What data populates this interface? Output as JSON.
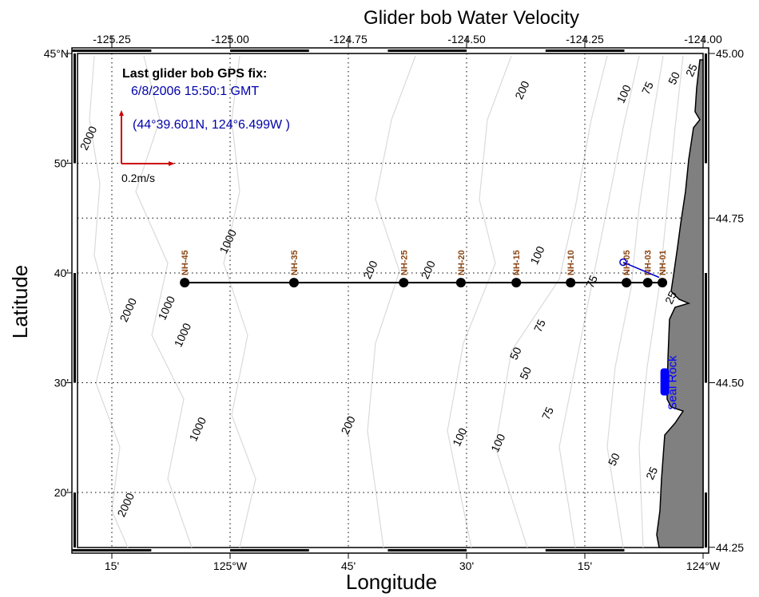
{
  "title": "Glider bob Water Velocity",
  "xlabel": "Longitude",
  "ylabel": "Latitude",
  "top_ticks": [
    {
      "lon": -125.25,
      "label": "-125.25"
    },
    {
      "lon": -125.0,
      "label": "-125.00"
    },
    {
      "lon": -124.75,
      "label": "-124.75"
    },
    {
      "lon": -124.5,
      "label": "-124.50"
    },
    {
      "lon": -124.25,
      "label": "-124.25"
    },
    {
      "lon": -124.0,
      "label": "-124.00"
    }
  ],
  "bottom_ticks": [
    {
      "lon": -125.25,
      "label": "15'"
    },
    {
      "lon": -125.0,
      "label": "125°W"
    },
    {
      "lon": -124.75,
      "label": "45'"
    },
    {
      "lon": -124.5,
      "label": "30'"
    },
    {
      "lon": -124.25,
      "label": "15'"
    },
    {
      "lon": -124.0,
      "label": "124°W"
    }
  ],
  "left_ticks": [
    {
      "lat": 45.0,
      "label": "45°N"
    },
    {
      "lat": 44.8333,
      "label": "50'"
    },
    {
      "lat": 44.6667,
      "label": "40'"
    },
    {
      "lat": 44.5,
      "label": "30'"
    },
    {
      "lat": 44.3333,
      "label": "20'"
    }
  ],
  "right_ticks": [
    {
      "lat": 45.0,
      "label": "45.00"
    },
    {
      "lat": 44.75,
      "label": "44.75"
    },
    {
      "lat": 44.5,
      "label": "44.50"
    },
    {
      "lat": 44.25,
      "label": "44.25"
    }
  ],
  "extent": {
    "lon": [
      -125.32,
      -124.0
    ],
    "lat": [
      44.25,
      45.0
    ]
  },
  "info": {
    "heading": "Last glider bob GPS fix:",
    "time": "6/8/2006 15:50:1 GMT",
    "position": "(44°39.601N, 124°6.499W )"
  },
  "scale": {
    "label": "0.2m/s",
    "color": "#cc0000"
  },
  "stations": [
    {
      "name": "NH-45",
      "lon": -125.096,
      "lat": 44.652
    },
    {
      "name": "NH-35",
      "lon": -124.865,
      "lat": 44.652
    },
    {
      "name": "NH-25",
      "lon": -124.633,
      "lat": 44.652
    },
    {
      "name": "NH-20",
      "lon": -124.512,
      "lat": 44.652
    },
    {
      "name": "NH-15",
      "lon": -124.395,
      "lat": 44.652
    },
    {
      "name": "NH-10",
      "lon": -124.28,
      "lat": 44.652
    },
    {
      "name": "NH-05",
      "lon": -124.162,
      "lat": 44.652
    },
    {
      "name": "NH-03",
      "lon": -124.117,
      "lat": 44.652
    },
    {
      "name": "NH-01",
      "lon": -124.086,
      "lat": 44.652
    }
  ],
  "glider_track": {
    "color": "#0000cc",
    "start": {
      "lon": -124.169,
      "lat": 44.683
    },
    "end": {
      "lon": -124.093,
      "lat": 44.66
    }
  },
  "seal_rock": {
    "label": "Seal Rock",
    "lon": -124.08,
    "lat": 44.5,
    "color": "#0000ff"
  },
  "contour_labels": [
    {
      "text": "25",
      "lon": -124.017,
      "lat": 44.972
    },
    {
      "text": "50",
      "lon": -124.054,
      "lat": 44.96
    },
    {
      "text": "75",
      "lon": -124.11,
      "lat": 44.945
    },
    {
      "text": "100",
      "lon": -124.16,
      "lat": 44.936
    },
    {
      "text": "200",
      "lon": -124.375,
      "lat": 44.942
    },
    {
      "text": "2000",
      "lon": -125.292,
      "lat": 44.869
    },
    {
      "text": "1000",
      "lon": -124.997,
      "lat": 44.712
    },
    {
      "text": "200",
      "lon": -124.696,
      "lat": 44.669
    },
    {
      "text": "200",
      "lon": -124.574,
      "lat": 44.669
    },
    {
      "text": "100",
      "lon": -124.38,
      "lat": 44.691
    },
    {
      "text": "75",
      "lon": -124.228,
      "lat": 44.651
    },
    {
      "text": "25",
      "lon": -124.081,
      "lat": 44.663
    },
    {
      "text": "2000",
      "lon": -125.208,
      "lat": 44.608
    },
    {
      "text": "1000",
      "lon": -125.127,
      "lat": 44.611
    },
    {
      "text": "1000",
      "lon": -125.093,
      "lat": 44.57
    },
    {
      "text": "75",
      "lon": -124.338,
      "lat": 44.584
    },
    {
      "text": "50",
      "lon": -124.389,
      "lat": 44.542
    },
    {
      "text": "50",
      "lon": -124.368,
      "lat": 44.512
    },
    {
      "text": "1000",
      "lon": -125.061,
      "lat": 44.427
    },
    {
      "text": "200",
      "lon": -124.743,
      "lat": 44.433
    },
    {
      "text": "75",
      "lon": -124.321,
      "lat": 44.451
    },
    {
      "text": "100",
      "lon": -124.507,
      "lat": 44.415
    },
    {
      "text": "100",
      "lon": -124.426,
      "lat": 44.406
    },
    {
      "text": "50",
      "lon": -124.181,
      "lat": 44.381
    },
    {
      "text": "25",
      "lon": -124.101,
      "lat": 44.36
    },
    {
      "text": "2000",
      "lon": -125.213,
      "lat": 44.312
    }
  ],
  "colors": {
    "land": "#808080",
    "contour": "#d8d8d8",
    "station_label": "#8b4513",
    "info_text": "#0000aa"
  }
}
